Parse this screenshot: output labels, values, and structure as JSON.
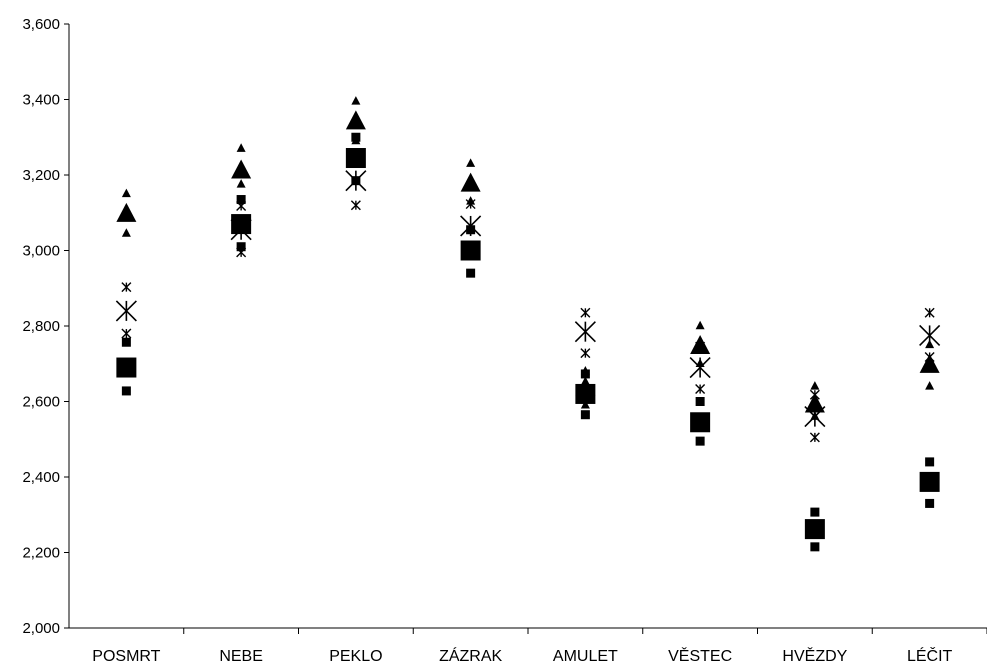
{
  "chart_data": {
    "type": "scatter",
    "categories": [
      "POSMRT",
      "NEBE",
      "PEKLO",
      "ZÁZRAK",
      "AMULET",
      "VĚSTEC",
      "HVĚZDY",
      "LÉČIT"
    ],
    "ylim": [
      2000,
      3600
    ],
    "yticks": [
      2000,
      2200,
      2400,
      2600,
      2800,
      3000,
      3200,
      3400,
      3600
    ],
    "ytick_labels": [
      "2,000",
      "2,200",
      "2,400",
      "2,600",
      "2,800",
      "3,000",
      "3,200",
      "3,400",
      "3,600"
    ],
    "grid": false,
    "series": [
      {
        "marker": "triangle",
        "values": [
          3095,
          3210,
          3340,
          3175,
          2635,
          2745,
          2590,
          2695
        ],
        "low": [
          3045,
          3175,
          3290,
          3130,
          2590,
          2700,
          2560,
          2640
        ],
        "high": [
          3150,
          3270,
          3395,
          3230,
          2680,
          2800,
          2640,
          2750
        ]
      },
      {
        "marker": "square",
        "values": [
          2690,
          3070,
          3245,
          3000,
          2620,
          2545,
          2262,
          2387
        ],
        "low": [
          2628,
          3010,
          3185,
          2940,
          2565,
          2495,
          2215,
          2330
        ],
        "high": [
          2757,
          3135,
          3300,
          3055,
          2673,
          2600,
          2307,
          2440
        ]
      },
      {
        "marker": "asterisk",
        "values": [
          2840,
          3055,
          3185,
          3065,
          2785,
          2690,
          2560,
          2775
        ],
        "low": [
          2780,
          2995,
          3120,
          3010,
          2728,
          2633,
          2505,
          2718
        ],
        "high": [
          2903,
          3118,
          3245,
          3123,
          2835,
          2745,
          2618,
          2835
        ]
      }
    ]
  }
}
